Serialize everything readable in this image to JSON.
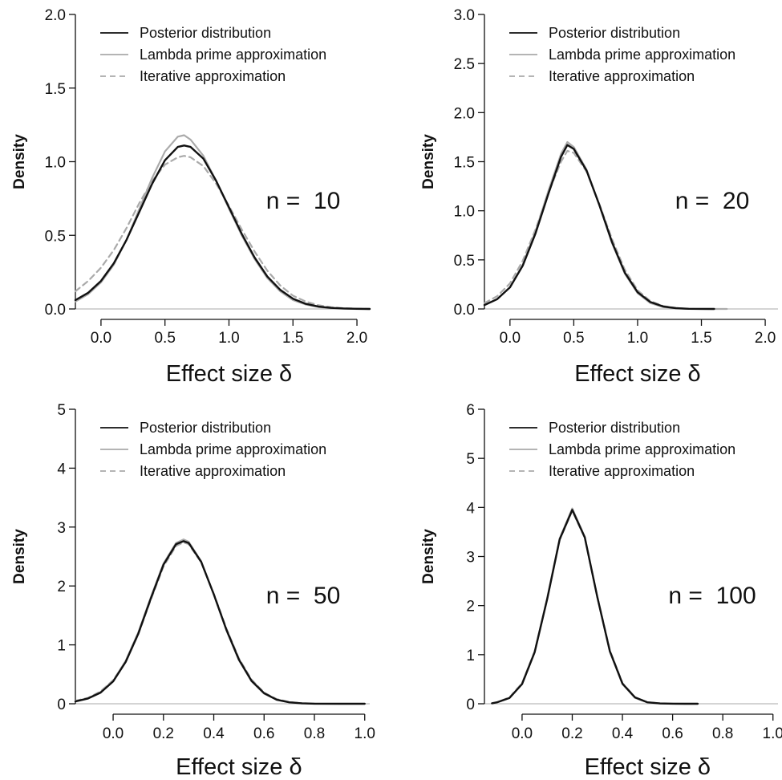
{
  "chart_data": [
    {
      "type": "line",
      "xlabel": "Effect size δ",
      "ylabel": "Density",
      "annotation": "n =  10",
      "xlim": [
        -0.2,
        2.1
      ],
      "ylim": [
        0,
        2.0
      ],
      "xticks": [
        "0.0",
        "0.5",
        "1.0",
        "1.5",
        "2.0"
      ],
      "yticks": [
        "0.0",
        "0.5",
        "1.0",
        "1.5",
        "2.0"
      ],
      "legend_position": "top-left",
      "series": [
        {
          "name": "Posterior distribution",
          "color": "#111111",
          "dash": "solid",
          "x": [
            -0.2,
            -0.1,
            0.0,
            0.1,
            0.2,
            0.3,
            0.4,
            0.5,
            0.6,
            0.65,
            0.7,
            0.8,
            0.9,
            1.0,
            1.1,
            1.2,
            1.3,
            1.4,
            1.5,
            1.6,
            1.7,
            1.8,
            1.9,
            2.0,
            2.1
          ],
          "y": [
            0.06,
            0.11,
            0.19,
            0.31,
            0.47,
            0.66,
            0.85,
            1.01,
            1.1,
            1.11,
            1.1,
            1.02,
            0.87,
            0.69,
            0.51,
            0.35,
            0.22,
            0.13,
            0.07,
            0.035,
            0.016,
            0.007,
            0.003,
            0.001,
            0.0
          ]
        },
        {
          "name": "Lambda prime approximation",
          "color": "#aaaaaa",
          "dash": "solid",
          "x": [
            -0.2,
            -0.1,
            0.0,
            0.1,
            0.2,
            0.3,
            0.4,
            0.5,
            0.6,
            0.65,
            0.7,
            0.8,
            0.9,
            1.0,
            1.1,
            1.2,
            1.3,
            1.4,
            1.5,
            1.6,
            1.7,
            1.8,
            1.9,
            2.0,
            2.1
          ],
          "y": [
            0.05,
            0.1,
            0.18,
            0.3,
            0.47,
            0.68,
            0.89,
            1.07,
            1.17,
            1.18,
            1.15,
            1.04,
            0.87,
            0.68,
            0.5,
            0.34,
            0.21,
            0.12,
            0.06,
            0.03,
            0.013,
            0.005,
            0.002,
            0.0,
            0.0
          ]
        },
        {
          "name": "Iterative approximation",
          "color": "#aaaaaa",
          "dash": "dashed",
          "x": [
            -0.2,
            -0.1,
            0.0,
            0.1,
            0.2,
            0.3,
            0.4,
            0.5,
            0.6,
            0.65,
            0.7,
            0.8,
            0.9,
            1.0,
            1.1,
            1.2,
            1.3,
            1.4,
            1.5,
            1.6,
            1.7,
            1.8,
            1.9,
            2.0,
            2.1
          ],
          "y": [
            0.12,
            0.19,
            0.28,
            0.4,
            0.55,
            0.72,
            0.87,
            0.98,
            1.03,
            1.04,
            1.03,
            0.97,
            0.85,
            0.7,
            0.54,
            0.39,
            0.26,
            0.16,
            0.09,
            0.05,
            0.025,
            0.012,
            0.005,
            0.002,
            0.0
          ]
        }
      ]
    },
    {
      "type": "line",
      "xlabel": "Effect size δ",
      "ylabel": "Density",
      "annotation": "n =  20",
      "xlim": [
        -0.2,
        2.1
      ],
      "ylim": [
        0,
        3.0
      ],
      "xticks": [
        "0.0",
        "0.5",
        "1.0",
        "1.5",
        "2.0"
      ],
      "yticks": [
        "0.0",
        "0.5",
        "1.0",
        "1.5",
        "2.0",
        "2.5",
        "3.0"
      ],
      "legend_position": "top-left",
      "series": [
        {
          "name": "Posterior distribution",
          "color": "#111111",
          "dash": "solid",
          "x": [
            -0.2,
            -0.1,
            0.0,
            0.1,
            0.2,
            0.3,
            0.4,
            0.45,
            0.5,
            0.6,
            0.7,
            0.8,
            0.9,
            1.0,
            1.1,
            1.2,
            1.3,
            1.4,
            1.5,
            1.6
          ],
          "y": [
            0.04,
            0.1,
            0.22,
            0.44,
            0.77,
            1.17,
            1.55,
            1.67,
            1.63,
            1.41,
            1.06,
            0.68,
            0.37,
            0.17,
            0.07,
            0.025,
            0.008,
            0.002,
            0.001,
            0.0
          ]
        },
        {
          "name": "Lambda prime approximation",
          "color": "#aaaaaa",
          "dash": "solid",
          "x": [
            -0.2,
            -0.1,
            0.0,
            0.1,
            0.2,
            0.3,
            0.4,
            0.45,
            0.5,
            0.6,
            0.7,
            0.8,
            0.9,
            1.0,
            1.1,
            1.2,
            1.3,
            1.4,
            1.5,
            1.6,
            1.7
          ],
          "y": [
            0.04,
            0.1,
            0.22,
            0.45,
            0.79,
            1.2,
            1.58,
            1.7,
            1.65,
            1.42,
            1.06,
            0.67,
            0.36,
            0.16,
            0.06,
            0.02,
            0.006,
            0.002,
            0.0,
            0.0,
            0.0
          ]
        },
        {
          "name": "Iterative approximation",
          "color": "#aaaaaa",
          "dash": "dashed",
          "x": [
            -0.2,
            -0.1,
            0.0,
            0.1,
            0.2,
            0.3,
            0.4,
            0.45,
            0.5,
            0.6,
            0.7,
            0.8,
            0.9,
            1.0,
            1.1,
            1.2,
            1.3,
            1.4
          ],
          "y": [
            0.06,
            0.13,
            0.26,
            0.49,
            0.81,
            1.18,
            1.5,
            1.61,
            1.59,
            1.4,
            1.07,
            0.71,
            0.4,
            0.19,
            0.08,
            0.03,
            0.01,
            0.0
          ]
        }
      ]
    },
    {
      "type": "line",
      "xlabel": "Effect size δ",
      "ylabel": "Density",
      "annotation": "n =  50",
      "xlim": [
        -0.15,
        1.02
      ],
      "ylim": [
        0,
        5
      ],
      "xticks": [
        "0.0",
        "0.2",
        "0.4",
        "0.6",
        "0.8",
        "1.0"
      ],
      "yticks": [
        "0",
        "1",
        "2",
        "3",
        "4",
        "5"
      ],
      "legend_position": "top-left",
      "series": [
        {
          "name": "Posterior distribution",
          "color": "#111111",
          "dash": "solid",
          "x": [
            -0.15,
            -0.1,
            -0.05,
            0.0,
            0.05,
            0.1,
            0.15,
            0.2,
            0.25,
            0.28,
            0.3,
            0.35,
            0.4,
            0.45,
            0.5,
            0.55,
            0.6,
            0.65,
            0.7,
            0.75,
            0.8,
            0.9,
            1.0
          ],
          "y": [
            0.04,
            0.09,
            0.19,
            0.38,
            0.71,
            1.19,
            1.79,
            2.36,
            2.71,
            2.76,
            2.73,
            2.41,
            1.86,
            1.26,
            0.75,
            0.39,
            0.18,
            0.07,
            0.025,
            0.008,
            0.002,
            0.0,
            0.0
          ]
        },
        {
          "name": "Lambda prime approximation",
          "color": "#aaaaaa",
          "dash": "solid",
          "x": [
            -0.15,
            -0.1,
            -0.05,
            0.0,
            0.05,
            0.1,
            0.15,
            0.2,
            0.25,
            0.28,
            0.3,
            0.35,
            0.4,
            0.45,
            0.5,
            0.55,
            0.6,
            0.65,
            0.7,
            0.75,
            0.8
          ],
          "y": [
            0.04,
            0.09,
            0.2,
            0.39,
            0.73,
            1.21,
            1.81,
            2.38,
            2.73,
            2.79,
            2.75,
            2.42,
            1.86,
            1.25,
            0.74,
            0.38,
            0.17,
            0.07,
            0.024,
            0.007,
            0.002
          ]
        },
        {
          "name": "Iterative approximation",
          "color": "#aaaaaa",
          "dash": "dashed",
          "x": [
            -0.15,
            -0.1,
            -0.05,
            0.0,
            0.05,
            0.1,
            0.15,
            0.2,
            0.25,
            0.28,
            0.3,
            0.35,
            0.4,
            0.45,
            0.5,
            0.55,
            0.6,
            0.65,
            0.7,
            0.75
          ],
          "y": [
            0.05,
            0.1,
            0.21,
            0.4,
            0.72,
            1.18,
            1.77,
            2.33,
            2.68,
            2.74,
            2.71,
            2.4,
            1.87,
            1.28,
            0.77,
            0.41,
            0.19,
            0.08,
            0.03,
            0.01
          ]
        }
      ]
    },
    {
      "type": "line",
      "xlabel": "Effect size δ",
      "ylabel": "Density",
      "annotation": "n =  100",
      "xlim": [
        -0.15,
        1.02
      ],
      "ylim": [
        0,
        6
      ],
      "xticks": [
        "0.0",
        "0.2",
        "0.4",
        "0.6",
        "0.8",
        "1.0"
      ],
      "yticks": [
        "0",
        "1",
        "2",
        "3",
        "4",
        "5",
        "6"
      ],
      "legend_position": "top-left",
      "series": [
        {
          "name": "Posterior distribution",
          "color": "#111111",
          "dash": "solid",
          "x": [
            -0.12,
            -0.1,
            -0.05,
            0.0,
            0.05,
            0.1,
            0.15,
            0.2,
            0.25,
            0.3,
            0.35,
            0.4,
            0.45,
            0.5,
            0.55,
            0.6,
            0.65,
            0.7
          ],
          "y": [
            0.01,
            0.03,
            0.12,
            0.4,
            1.05,
            2.13,
            3.35,
            3.95,
            3.39,
            2.17,
            1.07,
            0.41,
            0.13,
            0.03,
            0.006,
            0.001,
            0.0,
            0.0
          ]
        },
        {
          "name": "Lambda prime approximation",
          "color": "#aaaaaa",
          "dash": "solid",
          "x": [
            -0.12,
            -0.1,
            -0.05,
            0.0,
            0.05,
            0.1,
            0.15,
            0.2,
            0.25,
            0.3,
            0.35,
            0.4,
            0.45,
            0.5,
            0.55,
            0.6,
            0.65,
            0.7
          ],
          "y": [
            0.01,
            0.03,
            0.12,
            0.41,
            1.06,
            2.15,
            3.37,
            3.98,
            3.4,
            2.17,
            1.06,
            0.4,
            0.12,
            0.03,
            0.006,
            0.001,
            0.0,
            0.0
          ]
        },
        {
          "name": "Iterative approximation",
          "color": "#aaaaaa",
          "dash": "dashed",
          "x": [
            -0.12,
            -0.1,
            -0.05,
            0.0,
            0.05,
            0.1,
            0.15,
            0.2,
            0.25,
            0.3,
            0.35,
            0.4,
            0.45,
            0.5,
            0.55,
            0.6
          ],
          "y": [
            0.01,
            0.03,
            0.13,
            0.42,
            1.07,
            2.14,
            3.34,
            3.93,
            3.38,
            2.18,
            1.09,
            0.42,
            0.13,
            0.03,
            0.006,
            0.001
          ]
        }
      ]
    }
  ]
}
